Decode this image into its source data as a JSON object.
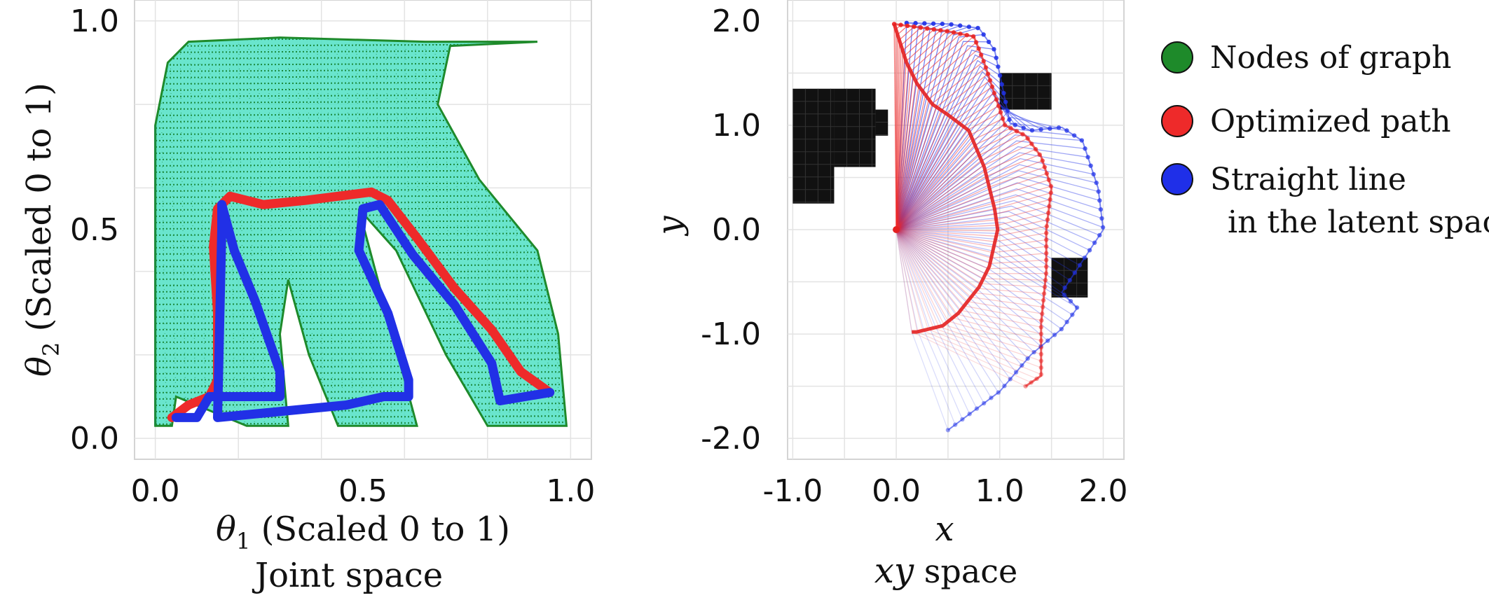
{
  "chart_data": [
    {
      "type": "scatter",
      "panel": "joint-space",
      "title": "Joint space",
      "xlabel_sym": "θ",
      "xlabel_sub": "1",
      "xlabel_text": " (Scaled 0 to 1)",
      "ylabel_sym": "θ",
      "ylabel_sub": "2",
      "ylabel_text": " (Scaled 0 to 1)",
      "xlim": [
        -0.05,
        1.05
      ],
      "ylim": [
        -0.05,
        1.05
      ],
      "x_ticks": [
        0.0,
        0.5,
        1.0
      ],
      "x_tick_labels": [
        "0.0",
        "0.5",
        "1.0"
      ],
      "y_ticks": [
        0.0,
        0.5,
        1.0
      ],
      "y_tick_labels": [
        "0.0",
        "0.5",
        "1.0"
      ],
      "grid": true,
      "graph_region_outline": [
        [
          0.0,
          0.03
        ],
        [
          0.0,
          0.75
        ],
        [
          0.03,
          0.9
        ],
        [
          0.08,
          0.95
        ],
        [
          0.3,
          0.96
        ],
        [
          0.65,
          0.95
        ],
        [
          0.92,
          0.95
        ],
        [
          0.71,
          0.94
        ],
        [
          0.68,
          0.8
        ],
        [
          0.78,
          0.62
        ],
        [
          0.92,
          0.45
        ],
        [
          0.97,
          0.25
        ],
        [
          0.99,
          0.03
        ],
        [
          0.8,
          0.03
        ],
        [
          0.7,
          0.2
        ],
        [
          0.58,
          0.45
        ],
        [
          0.49,
          0.55
        ],
        [
          0.63,
          0.03
        ],
        [
          0.44,
          0.03
        ],
        [
          0.37,
          0.2
        ],
        [
          0.32,
          0.38
        ],
        [
          0.3,
          0.25
        ],
        [
          0.32,
          0.03
        ],
        [
          0.22,
          0.03
        ],
        [
          0.05,
          0.1
        ],
        [
          0.04,
          0.03
        ]
      ],
      "series": [
        {
          "name": "Optimized path",
          "color": "#ee2a2a",
          "points": [
            [
              0.04,
              0.05
            ],
            [
              0.08,
              0.08
            ],
            [
              0.13,
              0.1
            ],
            [
              0.15,
              0.14
            ],
            [
              0.15,
              0.3
            ],
            [
              0.14,
              0.46
            ],
            [
              0.15,
              0.55
            ],
            [
              0.18,
              0.58
            ],
            [
              0.26,
              0.56
            ],
            [
              0.36,
              0.57
            ],
            [
              0.44,
              0.58
            ],
            [
              0.52,
              0.59
            ],
            [
              0.56,
              0.57
            ],
            [
              0.63,
              0.48
            ],
            [
              0.72,
              0.36
            ],
            [
              0.81,
              0.26
            ],
            [
              0.88,
              0.16
            ],
            [
              0.95,
              0.11
            ]
          ]
        },
        {
          "name": "Straight line in the latent space",
          "color": "#2130e6",
          "points": [
            [
              0.05,
              0.05
            ],
            [
              0.1,
              0.05
            ],
            [
              0.13,
              0.1
            ],
            [
              0.3,
              0.1
            ],
            [
              0.3,
              0.16
            ],
            [
              0.24,
              0.33
            ],
            [
              0.19,
              0.45
            ],
            [
              0.16,
              0.56
            ],
            [
              0.16,
              0.5
            ],
            [
              0.15,
              0.05
            ],
            [
              0.46,
              0.08
            ],
            [
              0.55,
              0.1
            ],
            [
              0.61,
              0.1
            ],
            [
              0.61,
              0.14
            ],
            [
              0.56,
              0.3
            ],
            [
              0.49,
              0.45
            ],
            [
              0.5,
              0.55
            ],
            [
              0.54,
              0.56
            ],
            [
              0.62,
              0.44
            ],
            [
              0.72,
              0.32
            ],
            [
              0.81,
              0.18
            ],
            [
              0.83,
              0.09
            ],
            [
              0.89,
              0.1
            ],
            [
              0.95,
              0.11
            ]
          ]
        }
      ]
    },
    {
      "type": "line",
      "panel": "xy-space",
      "title_math": "xy",
      "title_text": " space",
      "xlabel": "x",
      "ylabel": "y",
      "xlim": [
        -1.05,
        2.2
      ],
      "ylim": [
        -2.2,
        2.2
      ],
      "x_ticks": [
        -1.0,
        0.0,
        1.0,
        2.0
      ],
      "x_tick_labels": [
        "-1.0",
        "0.0",
        "1.0",
        "2.0"
      ],
      "y_ticks": [
        -2.0,
        -1.0,
        0.0,
        1.0,
        2.0
      ],
      "y_tick_labels": [
        "-2.0",
        "-1.0",
        "0.0",
        "1.0",
        "2.0"
      ],
      "grid": true,
      "base_point": [
        0.0,
        0.0
      ],
      "obstacles": [
        {
          "x": -1.0,
          "y": 0.25,
          "w": 0.4,
          "h": 1.1
        },
        {
          "x": -0.6,
          "y": 0.6,
          "w": 0.4,
          "h": 0.75
        },
        {
          "x": -0.2,
          "y": 0.9,
          "w": 0.12,
          "h": 0.25
        },
        {
          "x": 1.0,
          "y": 1.15,
          "w": 0.5,
          "h": 0.35
        },
        {
          "x": 1.5,
          "y": -0.65,
          "w": 0.35,
          "h": 0.38
        }
      ],
      "red_elbow_path": [
        [
          -0.02,
          1.97
        ],
        [
          0.1,
          1.6
        ],
        [
          0.2,
          1.4
        ],
        [
          0.35,
          1.2
        ],
        [
          0.5,
          1.1
        ],
        [
          0.7,
          0.95
        ],
        [
          0.85,
          0.6
        ],
        [
          0.95,
          0.2
        ],
        [
          0.98,
          0.0
        ],
        [
          0.9,
          -0.35
        ],
        [
          0.8,
          -0.55
        ],
        [
          0.6,
          -0.8
        ],
        [
          0.45,
          -0.92
        ],
        [
          0.2,
          -0.98
        ],
        [
          0.15,
          -0.98
        ]
      ],
      "red_tip_path": [
        [
          -0.02,
          1.97
        ],
        [
          0.5,
          1.9
        ],
        [
          0.75,
          1.85
        ],
        [
          0.85,
          1.6
        ],
        [
          0.95,
          1.3
        ],
        [
          1.05,
          1.0
        ],
        [
          1.25,
          0.9
        ],
        [
          1.4,
          0.7
        ],
        [
          1.5,
          0.4
        ],
        [
          1.45,
          0.0
        ],
        [
          1.45,
          -0.4
        ],
        [
          1.4,
          -0.9
        ],
        [
          1.4,
          -1.4
        ],
        [
          1.25,
          -1.5
        ]
      ],
      "blue_elbow_path": [
        [
          0.1,
          1.98
        ],
        [
          0.4,
          1.9
        ],
        [
          0.6,
          1.85
        ],
        [
          0.75,
          1.7
        ],
        [
          0.95,
          1.25
        ],
        [
          1.1,
          1.1
        ],
        [
          1.2,
          0.7
        ],
        [
          1.15,
          0.3
        ],
        [
          1.0,
          0.0
        ],
        [
          0.85,
          -0.5
        ],
        [
          0.7,
          -0.8
        ],
        [
          0.4,
          -0.92
        ],
        [
          0.15,
          -0.98
        ]
      ],
      "blue_tip_path": [
        [
          0.1,
          1.98
        ],
        [
          0.5,
          1.97
        ],
        [
          0.8,
          1.93
        ],
        [
          0.95,
          1.72
        ],
        [
          1.1,
          1.02
        ],
        [
          1.3,
          0.95
        ],
        [
          1.6,
          0.98
        ],
        [
          1.8,
          0.85
        ],
        [
          1.95,
          0.4
        ],
        [
          2.0,
          0.0
        ],
        [
          1.8,
          -0.3
        ],
        [
          1.6,
          -0.6
        ],
        [
          1.75,
          -0.75
        ],
        [
          1.6,
          -0.95
        ],
        [
          1.3,
          -1.2
        ],
        [
          1.0,
          -1.55
        ],
        [
          0.5,
          -1.92
        ]
      ]
    }
  ],
  "legend": {
    "items": [
      {
        "label": "Nodes of graph",
        "color": "#1e8a2a"
      },
      {
        "label": "Optimized path",
        "color": "#ee2a2a"
      },
      {
        "label": "Straight line",
        "color": "#1f2fe8"
      }
    ],
    "continuation": "in the latent space"
  }
}
